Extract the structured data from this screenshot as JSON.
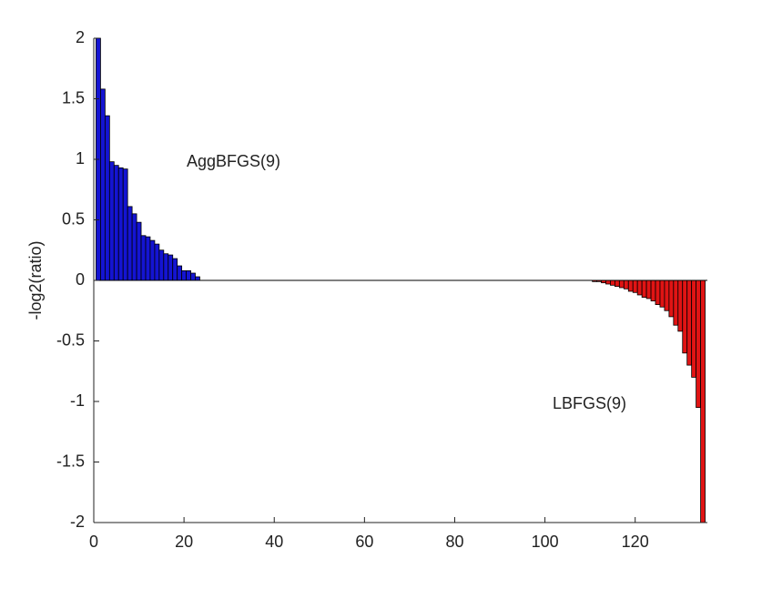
{
  "chart_data": {
    "type": "bar",
    "ylabel": "-log2(ratio)",
    "annotations": [
      "AggBFGS(9)",
      "LBFGS(9)"
    ],
    "x": [
      1,
      2,
      3,
      4,
      5,
      6,
      7,
      8,
      9,
      10,
      11,
      12,
      13,
      14,
      15,
      16,
      17,
      18,
      19,
      20,
      21,
      22,
      23,
      24,
      25,
      26,
      27,
      28,
      29,
      30,
      31,
      32,
      33,
      34,
      35,
      36,
      37,
      38,
      39,
      40,
      41,
      42,
      43,
      44,
      45,
      46,
      47,
      48,
      49,
      50,
      51,
      52,
      53,
      54,
      55,
      56,
      57,
      58,
      59,
      60,
      61,
      62,
      63,
      64,
      65,
      66,
      67,
      68,
      69,
      70,
      71,
      72,
      73,
      74,
      75,
      76,
      77,
      78,
      79,
      80,
      81,
      82,
      83,
      84,
      85,
      86,
      87,
      88,
      89,
      90,
      91,
      92,
      93,
      94,
      95,
      96,
      97,
      98,
      99,
      100,
      101,
      102,
      103,
      104,
      105,
      106,
      107,
      108,
      109,
      110,
      111,
      112,
      113,
      114,
      115,
      116,
      117,
      118,
      119,
      120,
      121,
      122,
      123,
      124,
      125,
      126,
      127,
      128,
      129,
      130,
      131,
      132,
      133,
      134,
      135
    ],
    "values": [
      2.0,
      1.58,
      1.36,
      0.98,
      0.95,
      0.93,
      0.92,
      0.61,
      0.55,
      0.48,
      0.37,
      0.36,
      0.33,
      0.3,
      0.25,
      0.22,
      0.21,
      0.18,
      0.12,
      0.08,
      0.08,
      0.06,
      0.03,
      0,
      0,
      0,
      0,
      0,
      0,
      0,
      0,
      0,
      0,
      0,
      0,
      0,
      0,
      0,
      0,
      0,
      0,
      0,
      0,
      0,
      0,
      0,
      0,
      0,
      0,
      0,
      0,
      0,
      0,
      0,
      0,
      0,
      0,
      0,
      0,
      0,
      0,
      0,
      0,
      0,
      0,
      0,
      0,
      0,
      0,
      0,
      0,
      0,
      0,
      0,
      0,
      0,
      0,
      0,
      0,
      0,
      0,
      0,
      0,
      0,
      0,
      0,
      0,
      0,
      0,
      0,
      0,
      0,
      0,
      0,
      0,
      0,
      0,
      0,
      0,
      0,
      0,
      0,
      0,
      0,
      0,
      0,
      0,
      0,
      0,
      0,
      -0.01,
      -0.01,
      -0.02,
      -0.03,
      -0.04,
      -0.05,
      -0.06,
      -0.07,
      -0.09,
      -0.1,
      -0.12,
      -0.14,
      -0.15,
      -0.17,
      -0.2,
      -0.22,
      -0.25,
      -0.3,
      -0.37,
      -0.42,
      -0.6,
      -0.7,
      -0.8,
      -1.05,
      -2.0
    ],
    "positive_color": "#1414d2",
    "negative_color": "#e01414",
    "xlim": [
      0,
      136
    ],
    "xticks": [
      0,
      20,
      40,
      60,
      80,
      100,
      120
    ],
    "ylim": [
      -2,
      2
    ],
    "yticks": [
      -2,
      -1.5,
      -1,
      -0.5,
      0,
      0.5,
      1,
      1.5,
      2
    ],
    "grid": false
  }
}
